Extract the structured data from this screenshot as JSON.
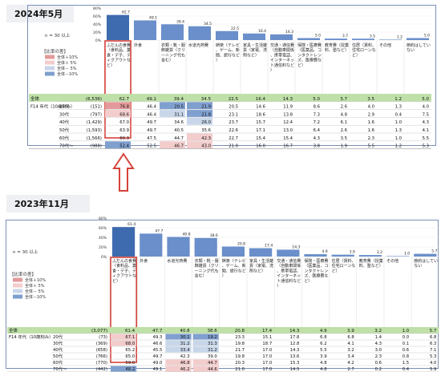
{
  "panels": [
    {
      "title": "2024年5月",
      "n_note": "n = 30 以上",
      "legend_title": "【比率の差】",
      "legend": [
        "全体＋10%",
        "全体＋ 5%",
        "全体－ 5%",
        "全体－10%"
      ],
      "legend_colors": [
        "#e49a9a",
        "#f3cccc",
        "#c8d6ea",
        "#7f9fcf"
      ],
      "chart_data": {
        "type": "bar",
        "ylim": [
          0,
          80
        ],
        "yticks": [
          "80%",
          "60%",
          "40%",
          "20%",
          "0%"
        ],
        "categories": [
          "ふだんの食費（食料品、業食・デ子、ティクアウトなど）",
          "外食",
          "衣類・靴・服飾雑貨（クリーニング代も含む）",
          "水道光熱費",
          "娯楽（テレビ、ゲーム、新聞、旅行など）",
          "家具・生活雑貨（家電、洗剤など）",
          "交通・通信費（自動車関係、携帯電話、インターネット通信料など）",
          "保険・医療費（医薬品、コンタクトレンズ、医療費など）",
          "教育費（授業料、塾など）",
          "住居（賃料、住宅ローンなど）",
          "その他",
          "節約はしていない"
        ],
        "values": [
          62.7,
          49.1,
          39.4,
          34.5,
          22.5,
          16.4,
          14.3,
          5.0,
          3.7,
          3.5,
          1.2,
          5.0
        ],
        "value_labels": [
          "62.7",
          "49.1",
          "39.4",
          "34.5",
          "22.5",
          "16.4",
          "14.3",
          "5.0",
          "3.7",
          "3.5",
          "1.2",
          "5.0"
        ],
        "table": {
          "total_row": {
            "label": "全体",
            "n": "(6,536)",
            "values": [
              "62.7",
              "49.1",
              "39.4",
              "34.5",
              "22.5",
              "16.4",
              "14.3",
              "5.0",
              "3.7",
              "3.5",
              "1.2",
              "5.0"
            ]
          },
          "group_label": "F14 年代（10歳刻み）",
          "rows": [
            {
              "label": "20代",
              "n": "(151)",
              "values": [
                "76.8",
                "46.4",
                "20.5",
                "21.9",
                "20.5",
                "14.6",
                "11.9",
                "8.6",
                "2.6",
                "4.0",
                "1.3",
                "4.0"
              ],
              "diffs": [
                2,
                0,
                -2,
                -2,
                0,
                0,
                0,
                0,
                0,
                0,
                0,
                0
              ]
            },
            {
              "label": "30代",
              "n": "(797)",
              "values": [
                "68.6",
                "46.4",
                "31.1",
                "21.8",
                "23.1",
                "18.6",
                "13.8",
                "7.3",
                "4.8",
                "2.9",
                "0.4",
                "7.5"
              ],
              "diffs": [
                1,
                0,
                -1,
                -2,
                0,
                0,
                0,
                0,
                0,
                0,
                0,
                0
              ]
            },
            {
              "label": "40代",
              "n": "(1,429)",
              "values": [
                "67.0",
                "49.7",
                "34.6",
                "26.0",
                "23.7",
                "15.7",
                "12.4",
                "7.2",
                "6.1",
                "1.6",
                "1.0",
                "4.3"
              ],
              "diffs": [
                0,
                0,
                0,
                -1,
                0,
                0,
                0,
                0,
                0,
                0,
                0,
                0
              ]
            },
            {
              "label": "50代",
              "n": "(1,593)",
              "values": [
                "63.9",
                "49.7",
                "40.5",
                "35.6",
                "22.6",
                "17.1",
                "13.0",
                "6.4",
                "2.6",
                "1.6",
                "1.3",
                "4.1"
              ],
              "diffs": [
                0,
                0,
                0,
                0,
                0,
                0,
                0,
                0,
                0,
                0,
                0,
                0
              ]
            },
            {
              "label": "60代",
              "n": "(1,566)",
              "values": [
                "60.3",
                "47.5",
                "44.7",
                "42.3",
                "22.7",
                "15.4",
                "15.4",
                "4.3",
                "3.5",
                "2.3",
                "1.0",
                "5.5"
              ],
              "diffs": [
                0,
                0,
                0,
                1,
                0,
                0,
                0,
                0,
                0,
                0,
                0,
                0
              ]
            },
            {
              "label": "70代～",
              "n": "(988)",
              "values": [
                "52.4",
                "52.5",
                "46.7",
                "43.0",
                "21.0",
                "16.0",
                "16.7",
                "3.8",
                "1.9",
                "5.5",
                "1.2",
                "5.3"
              ],
              "diffs": [
                -2,
                0,
                1,
                1,
                0,
                0,
                0,
                0,
                0,
                0,
                0,
                0
              ]
            }
          ]
        }
      }
    },
    {
      "title": "2023年11月",
      "n_note": "n = 30 以上",
      "legend_title": "【比率の差】",
      "legend": [
        "全体＋10%",
        "全体＋ 5%",
        "全体－ 5%",
        "全体－10%"
      ],
      "legend_colors": [
        "#e49a9a",
        "#f3cccc",
        "#c8d6ea",
        "#7f9fcf"
      ],
      "chart_data": {
        "type": "bar",
        "ylim": [
          0,
          80
        ],
        "yticks": [
          "80%",
          "60%",
          "40%",
          "20%",
          "0%"
        ],
        "categories": [
          "ふだんの食費（食料品、業食・デ子、ティクアウトなど）",
          "外食",
          "水道光熱費",
          "衣類・靴・服飾雑貨（クリーニング代も含む）",
          "娯楽（テレビ、ゲーム、新聞、旅行など）",
          "家具・生活雑貨（家電、洗剤など）",
          "交通・通信費（自動車関係、携帯電話、インターネット通信料など）",
          "保険・医療費（医薬品、コンタクトレンズ、医療費など）",
          "住居（賃料、住宅ローンなど）",
          "教育費（授業料、塾など）",
          "その他",
          "節約はしていない"
        ],
        "values": [
          61.4,
          47.7,
          40.8,
          38.6,
          20.8,
          17.4,
          14.3,
          4.9,
          3.9,
          3.2,
          1.0,
          5.7
        ],
        "value_labels": [
          "61.4",
          "47.7",
          "40.8",
          "38.6",
          "20.8",
          "17.4",
          "14.3",
          "4.9",
          "3.9",
          "3.2",
          "1.0",
          "5.7"
        ],
        "table": {
          "total_row": {
            "label": "全体",
            "n": "(3,077)",
            "values": [
              "61.4",
              "47.7",
              "40.8",
              "38.6",
              "20.8",
              "17.4",
              "14.3",
              "4.9",
              "3.9",
              "3.2",
              "1.0",
              "5.7"
            ]
          },
          "group_label": "F14 年代（10歳刻み）",
          "rows": [
            {
              "label": "20代",
              "n": "(73)",
              "values": [
                "67.1",
                "49.3",
                "30.1",
                "19.2",
                "23.3",
                "15.1",
                "17.8",
                "6.8",
                "6.8",
                "1.4",
                "0.0",
                "6.8"
              ],
              "diffs": [
                1,
                0,
                -2,
                -2,
                0,
                0,
                0,
                0,
                0,
                0,
                0,
                0
              ]
            },
            {
              "label": "30代",
              "n": "(369)",
              "values": [
                "68.0",
                "46.6",
                "31.2",
                "31.3",
                "19.8",
                "18.7",
                "12.8",
                "6.2",
                "4.1",
                "4.3",
                "0.1",
                "6.3"
              ],
              "diffs": [
                1,
                0,
                -1,
                -1,
                0,
                0,
                0,
                0,
                0,
                0,
                0,
                0
              ]
            },
            {
              "label": "40代",
              "n": "(658)",
              "values": [
                "65.2",
                "45.5",
                "33.4",
                "31.2",
                "21.7",
                "17.0",
                "14.3",
                "5.5",
                "3.2",
                "3.0",
                "0.6",
                "7.1"
              ],
              "diffs": [
                0,
                0,
                -1,
                -1,
                0,
                0,
                0,
                0,
                0,
                0,
                0,
                0
              ]
            },
            {
              "label": "50代",
              "n": "(766)",
              "values": [
                "65.0",
                "49.7",
                "42.3",
                "39.0",
                "19.8",
                "17.0",
                "13.6",
                "3.9",
                "3.4",
                "2.3",
                "0.8",
                "5.3"
              ],
              "diffs": [
                0,
                0,
                0,
                0,
                0,
                0,
                0,
                0,
                0,
                0,
                0,
                0
              ]
            },
            {
              "label": "60代",
              "n": "(770)",
              "values": [
                "59.0",
                "49.0",
                "46.8",
                "44.7",
                "20.3",
                "17.0",
                "15.3",
                "4.8",
                "4.2",
                "0.6",
                "1.5",
                "4.0"
              ],
              "diffs": [
                0,
                0,
                1,
                1,
                0,
                0,
                0,
                0,
                0,
                0,
                0,
                0
              ]
            },
            {
              "label": "70代～",
              "n": "(442)",
              "values": [
                "48.2",
                "49.1",
                "46.2",
                "44.6",
                "21.0",
                "17.0",
                "14.5",
                "4.8",
                "2.7",
                "0.2",
                "0.4",
                "5.9"
              ],
              "diffs": [
                -2,
                0,
                1,
                1,
                0,
                0,
                0,
                0,
                0,
                0,
                0,
                0
              ]
            }
          ]
        }
      }
    }
  ]
}
